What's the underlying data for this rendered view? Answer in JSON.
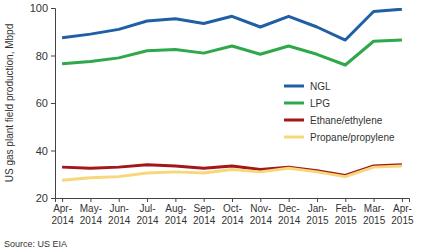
{
  "chart_data": {
    "type": "line",
    "y_label": "US gas plant field production, Mbpd",
    "source": "Source: US EIA",
    "categories": [
      "Apr-2014",
      "May-2014",
      "Jun-2014",
      "Jul-2014",
      "Aug-2014",
      "Sep-2014",
      "Oct-2014",
      "Nov-2014",
      "Dec-2014",
      "Jan-2015",
      "Feb-2015",
      "Mar-2015",
      "Apr-2015"
    ],
    "series": [
      {
        "name": "NGL",
        "color": "#1f5fa6",
        "values": [
          87.5,
          89,
          91,
          94.5,
          95.5,
          93.5,
          96.5,
          92,
          96.5,
          92,
          86.5,
          98.5,
          99.5
        ]
      },
      {
        "name": "LPG",
        "color": "#2ea84a",
        "values": [
          76.5,
          77.5,
          79,
          82,
          82.5,
          81,
          84,
          80.5,
          84,
          80.5,
          76,
          86,
          86.5
        ]
      },
      {
        "name": "Ethane/ethylene",
        "color": "#a3161a",
        "values": [
          33,
          32.5,
          33,
          34,
          33.5,
          32.5,
          33.5,
          32,
          33,
          31.5,
          29.5,
          33.5,
          34
        ]
      },
      {
        "name": "Propane/propylene",
        "color": "#f6d77a",
        "values": [
          27.5,
          28.5,
          29,
          30.5,
          31,
          30.5,
          32,
          31,
          32.5,
          31,
          29,
          33,
          33.5
        ]
      }
    ],
    "ylim": [
      20,
      100
    ],
    "yticks": [
      20,
      40,
      60,
      80,
      100
    ],
    "grid": false,
    "legend": "right"
  }
}
